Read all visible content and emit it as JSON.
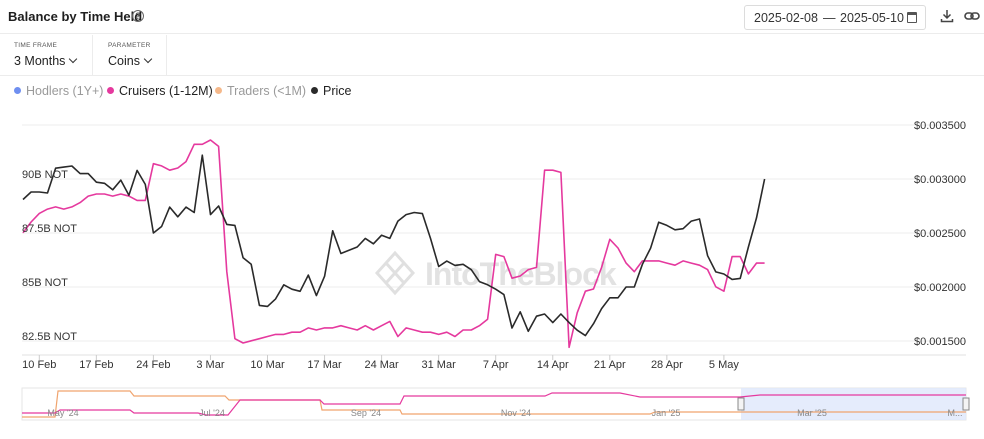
{
  "header": {
    "title": "Balance by Time Held",
    "help_icon": "help-circle-icon",
    "date_start": "2025-02-08",
    "date_sep": "—",
    "date_end": "2025-05-10",
    "calendar_icon": "calendar-icon",
    "download_icon": "download-icon",
    "link_icon": "link-icon"
  },
  "controls": {
    "time_frame_label": "TIME FRAME",
    "time_frame_value": "3 Months",
    "parameter_label": "PARAMETER",
    "parameter_value": "Coins"
  },
  "legend": [
    {
      "label": "Hodlers (1Y+)",
      "color": "#6f8ff0",
      "active": false
    },
    {
      "label": "Cruisers (1-12M)",
      "color": "#e5399e",
      "active": true
    },
    {
      "label": "Traders (<1M)",
      "color": "#f5b88a",
      "active": false
    },
    {
      "label": "Price",
      "color": "#2a2a2a",
      "active": true
    }
  ],
  "watermark": "IntoTheBlock",
  "chart_data": {
    "type": "line",
    "x_labels": [
      "10 Feb",
      "17 Feb",
      "24 Feb",
      "3 Mar",
      "10 Mar",
      "17 Mar",
      "24 Mar",
      "31 Mar",
      "7 Apr",
      "14 Apr",
      "21 Apr",
      "28 Apr",
      "5 May"
    ],
    "y_left": {
      "ticks": [
        "90B NOT",
        "87.5B NOT",
        "85B NOT",
        "82.5B NOT"
      ],
      "values": [
        90,
        87.5,
        85,
        82.5
      ],
      "unit": "B NOT"
    },
    "y_right": {
      "ticks": [
        "$0.003500",
        "$0.003000",
        "$0.002500",
        "$0.002000",
        "$0.001500"
      ],
      "values": [
        0.0035,
        0.003,
        0.0025,
        0.002,
        0.0015
      ]
    },
    "series": [
      {
        "name": "Cruisers (1-12M)",
        "axis": "left",
        "color": "#e5399e",
        "x": [
          "2025-02-08",
          "2025-02-09",
          "2025-02-10",
          "2025-02-11",
          "2025-02-12",
          "2025-02-13",
          "2025-02-14",
          "2025-02-15",
          "2025-02-16",
          "2025-02-17",
          "2025-02-18",
          "2025-02-19",
          "2025-02-20",
          "2025-02-21",
          "2025-02-22",
          "2025-02-23",
          "2025-02-24",
          "2025-02-25",
          "2025-02-26",
          "2025-02-27",
          "2025-02-28",
          "2025-03-01",
          "2025-03-02",
          "2025-03-03",
          "2025-03-04",
          "2025-03-05",
          "2025-03-06",
          "2025-03-07",
          "2025-03-08",
          "2025-03-09",
          "2025-03-10",
          "2025-03-11",
          "2025-03-12",
          "2025-03-13",
          "2025-03-14",
          "2025-03-15",
          "2025-03-16",
          "2025-03-17",
          "2025-03-18",
          "2025-03-19",
          "2025-03-20",
          "2025-03-21",
          "2025-03-22",
          "2025-03-23",
          "2025-03-24",
          "2025-03-25",
          "2025-03-26",
          "2025-03-27",
          "2025-03-28",
          "2025-03-29",
          "2025-03-30",
          "2025-03-31",
          "2025-04-01",
          "2025-04-02",
          "2025-04-03",
          "2025-04-04",
          "2025-04-05",
          "2025-04-06",
          "2025-04-07",
          "2025-04-08",
          "2025-04-09",
          "2025-04-10",
          "2025-04-11",
          "2025-04-12",
          "2025-04-13",
          "2025-04-14",
          "2025-04-15",
          "2025-04-16",
          "2025-04-17",
          "2025-04-18",
          "2025-04-19",
          "2025-04-20",
          "2025-04-21",
          "2025-04-22",
          "2025-04-23",
          "2025-04-24",
          "2025-04-25",
          "2025-04-26",
          "2025-04-27",
          "2025-04-28",
          "2025-04-29",
          "2025-04-30",
          "2025-05-01",
          "2025-05-02",
          "2025-05-03",
          "2025-05-04",
          "2025-05-05",
          "2025-05-06",
          "2025-05-07",
          "2025-05-08",
          "2025-05-09",
          "2025-05-10"
        ],
        "values": [
          87.6,
          88.1,
          88.5,
          88.7,
          88.8,
          88.7,
          88.8,
          89.0,
          89.3,
          89.4,
          89.4,
          89.3,
          89.4,
          89.3,
          89.1,
          89.1,
          90.8,
          90.7,
          90.5,
          90.6,
          90.9,
          91.7,
          91.7,
          91.9,
          91.6,
          85.8,
          82.7,
          82.5,
          82.6,
          82.7,
          82.8,
          82.9,
          82.9,
          83.0,
          83.0,
          83.2,
          83.1,
          83.2,
          83.2,
          83.3,
          83.2,
          83.1,
          83.3,
          83.1,
          83.3,
          83.5,
          82.8,
          83.2,
          83.1,
          83.0,
          83.0,
          82.9,
          83.0,
          82.8,
          83.1,
          83.1,
          83.3,
          83.6,
          86.6,
          86.5,
          85.5,
          85.6,
          85.9,
          86.0,
          90.5,
          90.5,
          90.4,
          82.3,
          83.9,
          84.9,
          85.0,
          86.0,
          87.3,
          86.9,
          86.2,
          85.8,
          86.3,
          86.3,
          86.3,
          86.2,
          86.1,
          86.3,
          86.2,
          86.1,
          85.9,
          85.1,
          84.9,
          86.5,
          86.5,
          85.7,
          86.2,
          86.2
        ]
      },
      {
        "name": "Price",
        "axis": "right",
        "color": "#2a2a2a",
        "x": [
          "2025-02-08",
          "2025-02-09",
          "2025-02-10",
          "2025-02-11",
          "2025-02-12",
          "2025-02-13",
          "2025-02-14",
          "2025-02-15",
          "2025-02-16",
          "2025-02-17",
          "2025-02-18",
          "2025-02-19",
          "2025-02-20",
          "2025-02-21",
          "2025-02-22",
          "2025-02-23",
          "2025-02-24",
          "2025-02-25",
          "2025-02-26",
          "2025-02-27",
          "2025-02-28",
          "2025-03-01",
          "2025-03-02",
          "2025-03-03",
          "2025-03-04",
          "2025-03-05",
          "2025-03-06",
          "2025-03-07",
          "2025-03-08",
          "2025-03-09",
          "2025-03-10",
          "2025-03-11",
          "2025-03-12",
          "2025-03-13",
          "2025-03-14",
          "2025-03-15",
          "2025-03-16",
          "2025-03-17",
          "2025-03-18",
          "2025-03-19",
          "2025-03-20",
          "2025-03-21",
          "2025-03-22",
          "2025-03-23",
          "2025-03-24",
          "2025-03-25",
          "2025-03-26",
          "2025-03-27",
          "2025-03-28",
          "2025-03-29",
          "2025-03-30",
          "2025-03-31",
          "2025-04-01",
          "2025-04-02",
          "2025-04-03",
          "2025-04-04",
          "2025-04-05",
          "2025-04-06",
          "2025-04-07",
          "2025-04-08",
          "2025-04-09",
          "2025-04-10",
          "2025-04-11",
          "2025-04-12",
          "2025-04-13",
          "2025-04-14",
          "2025-04-15",
          "2025-04-16",
          "2025-04-17",
          "2025-04-18",
          "2025-04-19",
          "2025-04-20",
          "2025-04-21",
          "2025-04-22",
          "2025-04-23",
          "2025-04-24",
          "2025-04-25",
          "2025-04-26",
          "2025-04-27",
          "2025-04-28",
          "2025-04-29",
          "2025-04-30",
          "2025-05-01",
          "2025-05-02",
          "2025-05-03",
          "2025-05-04",
          "2025-05-05",
          "2025-05-06",
          "2025-05-07",
          "2025-05-08",
          "2025-05-09",
          "2025-05-10"
        ],
        "values": [
          0.00281,
          0.00288,
          0.00288,
          0.00287,
          0.0031,
          0.00311,
          0.00312,
          0.00305,
          0.00305,
          0.00297,
          0.00296,
          0.0029,
          0.00299,
          0.00285,
          0.00308,
          0.00295,
          0.0025,
          0.00256,
          0.00274,
          0.00265,
          0.00274,
          0.00269,
          0.00322,
          0.00267,
          0.00275,
          0.00258,
          0.00257,
          0.00227,
          0.00221,
          0.00183,
          0.00182,
          0.00189,
          0.00202,
          0.00198,
          0.00196,
          0.00211,
          0.00192,
          0.0021,
          0.00252,
          0.00231,
          0.00234,
          0.00237,
          0.00245,
          0.0024,
          0.00248,
          0.00245,
          0.00261,
          0.00267,
          0.00269,
          0.00268,
          0.00245,
          0.00219,
          0.00224,
          0.0022,
          0.00221,
          0.00216,
          0.00205,
          0.00202,
          0.00198,
          0.00193,
          0.00162,
          0.00177,
          0.00159,
          0.00173,
          0.00175,
          0.00167,
          0.00175,
          0.00167,
          0.0016,
          0.00155,
          0.00166,
          0.0018,
          0.0019,
          0.0019,
          0.002,
          0.002,
          0.00221,
          0.00236,
          0.0026,
          0.00257,
          0.00253,
          0.00254,
          0.00261,
          0.00263,
          0.00229,
          0.00214,
          0.00212,
          0.00207,
          0.00208,
          0.00237,
          0.00264,
          0.003
        ]
      }
    ],
    "navigator": {
      "x_labels": [
        "May '24",
        "Jul '24",
        "Sep '24",
        "Nov '24",
        "Jan '25",
        "Mar '25",
        "M..."
      ]
    }
  }
}
